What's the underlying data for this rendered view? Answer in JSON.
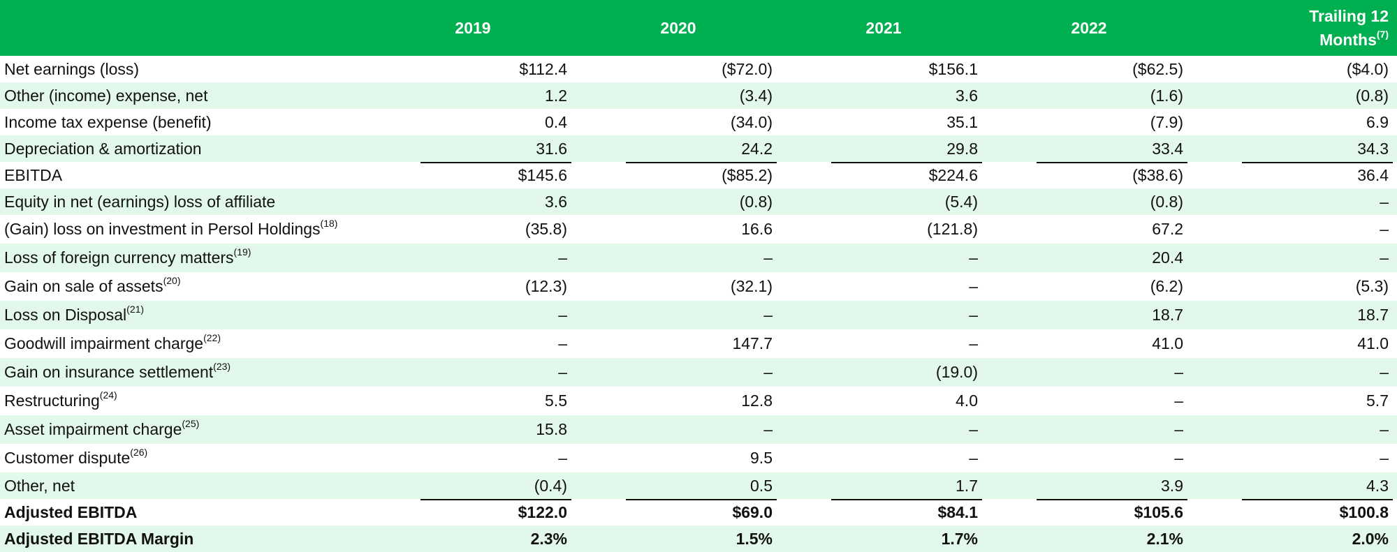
{
  "header": {
    "columns": [
      "2019",
      "2020",
      "2021",
      "2022"
    ],
    "trailing_line1": "Trailing 12",
    "trailing_line2": "Months",
    "trailing_sup": "(7)"
  },
  "rows": [
    {
      "label": "Net earnings (loss)",
      "sup": "",
      "values": [
        "$112.4",
        "($72.0)",
        "$156.1",
        "($62.5)",
        "($4.0)"
      ]
    },
    {
      "label": "Other (income) expense, net",
      "sup": "",
      "values": [
        "1.2",
        "(3.4)",
        "3.6",
        "(1.6)",
        "(0.8)"
      ]
    },
    {
      "label": "Income tax expense (benefit)",
      "sup": "",
      "values": [
        "0.4",
        "(34.0)",
        "35.1",
        "(7.9)",
        "6.9"
      ]
    },
    {
      "label": "Depreciation & amortization",
      "sup": "",
      "values": [
        "31.6",
        "24.2",
        "29.8",
        "33.4",
        "34.3"
      ]
    },
    {
      "label": "EBITDA",
      "sup": "",
      "values": [
        "$145.6",
        "($85.2)",
        "$224.6",
        "($38.6)",
        "36.4"
      ]
    },
    {
      "label": "Equity in net (earnings) loss of affiliate",
      "sup": "",
      "values": [
        "3.6",
        "(0.8)",
        "(5.4)",
        "(0.8)",
        "–"
      ]
    },
    {
      "label": "(Gain) loss on investment in Persol Holdings",
      "sup": "(18)",
      "values": [
        "(35.8)",
        "16.6",
        "(121.8)",
        "67.2",
        "–"
      ]
    },
    {
      "label": "Loss of foreign currency matters",
      "sup": "(19)",
      "values": [
        "–",
        "–",
        "–",
        "20.4",
        "–"
      ]
    },
    {
      "label": "Gain on sale of assets",
      "sup": "(20)",
      "values": [
        "(12.3)",
        "(32.1)",
        "–",
        "(6.2)",
        "(5.3)"
      ]
    },
    {
      "label": "Loss on Disposal",
      "sup": "(21)",
      "values": [
        "–",
        "–",
        "–",
        "18.7",
        "18.7"
      ]
    },
    {
      "label": "Goodwill impairment charge",
      "sup": "(22)",
      "values": [
        "–",
        "147.7",
        "–",
        "41.0",
        "41.0"
      ]
    },
    {
      "label": "Gain on insurance settlement",
      "sup": "(23)",
      "values": [
        "–",
        "–",
        "(19.0)",
        "–",
        "–"
      ]
    },
    {
      "label": "Restructuring",
      "sup": "(24)",
      "values": [
        "5.5",
        "12.8",
        "4.0",
        "–",
        "5.7"
      ]
    },
    {
      "label": "Asset impairment charge",
      "sup": "(25)",
      "values": [
        "15.8",
        "–",
        "–",
        "–",
        "–"
      ]
    },
    {
      "label": "Customer dispute",
      "sup": "(26)",
      "values": [
        "–",
        "9.5",
        "–",
        "–",
        "–"
      ]
    },
    {
      "label": "Other, net",
      "sup": "",
      "values": [
        "(0.4)",
        "0.5",
        "1.7",
        "3.9",
        "4.3"
      ]
    },
    {
      "label": "Adjusted EBITDA",
      "sup": "",
      "values": [
        "$122.0",
        "$69.0",
        "$84.1",
        "$105.6",
        "$100.8"
      ]
    },
    {
      "label": "Adjusted EBITDA Margin",
      "sup": "",
      "values": [
        "2.3%",
        "1.5%",
        "1.7%",
        "2.1%",
        "2.0%"
      ]
    }
  ],
  "colors": {
    "header_bg": "#00b050",
    "shade": "#e2f8ea"
  }
}
